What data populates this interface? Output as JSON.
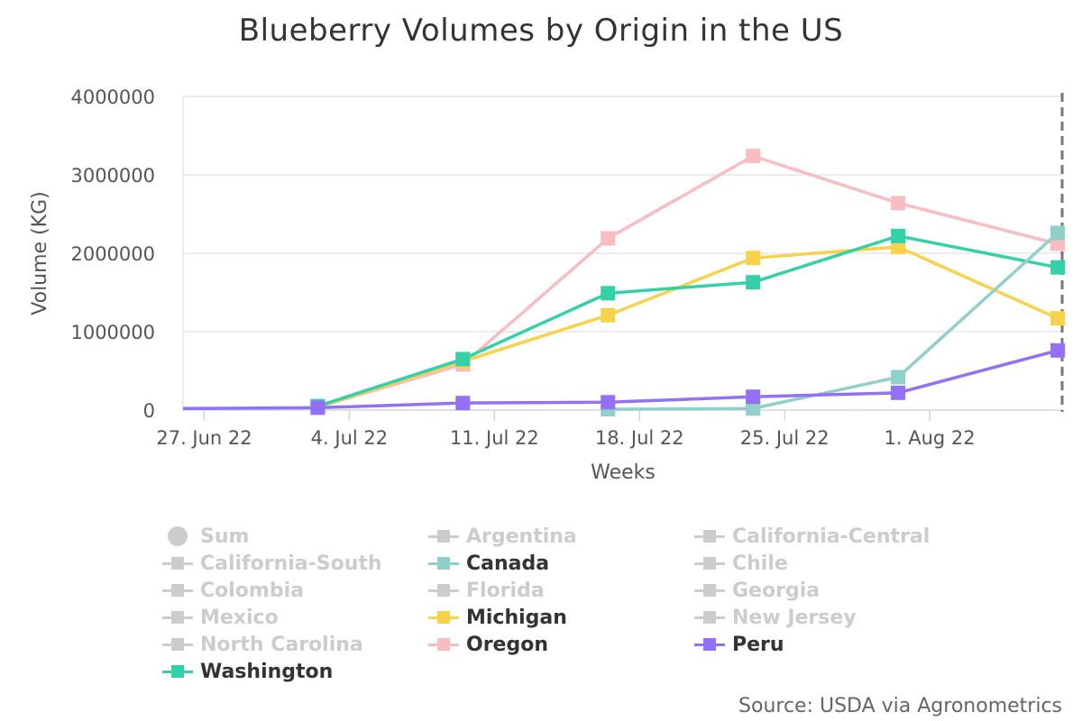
{
  "chart_data": {
    "type": "line",
    "title": "Blueberry Volumes by Origin in the US",
    "xlabel": "Weeks",
    "ylabel": "Volume (KG)",
    "ylim": [
      0,
      4000000
    ],
    "y_ticks": [
      "0",
      "1000000",
      "2000000",
      "3000000",
      "4000000"
    ],
    "x_tick_labels": [
      "27. Jun 22",
      "4. Jul 22",
      "11. Jul 22",
      "18. Jul 22",
      "25. Jul 22",
      "1. Aug 22"
    ],
    "x_range_days": [
      -0.5,
      42
    ],
    "x_tick_days": [
      0,
      7,
      14,
      21,
      28,
      35
    ],
    "crosshair_day": 42,
    "series": [
      {
        "name": "Oregon",
        "color": "#f9bcc0",
        "x_days": [
          6,
          13,
          20,
          27,
          34,
          41.7
        ],
        "values": [
          40000,
          580000,
          2190000,
          3240000,
          2640000,
          2120000
        ]
      },
      {
        "name": "Michigan",
        "color": "#f8d24b",
        "x_days": [
          6,
          13,
          20,
          27,
          34,
          41.7
        ],
        "values": [
          40000,
          620000,
          1210000,
          1940000,
          2080000,
          1170000
        ]
      },
      {
        "name": "Washington",
        "color": "#34d1a8",
        "x_days": [
          6,
          13,
          20,
          27,
          34,
          41.7
        ],
        "values": [
          50000,
          650000,
          1490000,
          1630000,
          2220000,
          1820000
        ]
      },
      {
        "name": "Canada",
        "color": "#90d0c8",
        "x_days": [
          20,
          27,
          34,
          41.7
        ],
        "values": [
          10000,
          20000,
          420000,
          2260000
        ]
      },
      {
        "name": "Peru",
        "color": "#9370f5",
        "x_days": [
          -0.5,
          6,
          13,
          20,
          27,
          34,
          41.7
        ],
        "values": [
          20000,
          30000,
          90000,
          100000,
          170000,
          220000,
          760000
        ]
      }
    ]
  },
  "legend": {
    "items": [
      {
        "label": "Sum",
        "active": false,
        "symbol": "circle"
      },
      {
        "label": "Argentina",
        "active": false
      },
      {
        "label": "California-Central",
        "active": false
      },
      {
        "label": "California-South",
        "active": false
      },
      {
        "label": "Canada",
        "active": true,
        "color": "#90d0c8"
      },
      {
        "label": "Chile",
        "active": false
      },
      {
        "label": "Colombia",
        "active": false
      },
      {
        "label": "Florida",
        "active": false
      },
      {
        "label": "Georgia",
        "active": false
      },
      {
        "label": "Mexico",
        "active": false
      },
      {
        "label": "Michigan",
        "active": true,
        "color": "#f8d24b"
      },
      {
        "label": "New Jersey",
        "active": false
      },
      {
        "label": "North Carolina",
        "active": false
      },
      {
        "label": "Oregon",
        "active": true,
        "color": "#f9bcc0"
      },
      {
        "label": "Peru",
        "active": true,
        "color": "#9370f5"
      },
      {
        "label": "Washington",
        "active": true,
        "color": "#34d1a8"
      }
    ],
    "inactive_color": "#cccccc"
  },
  "source": "Source: USDA via Agronometrics"
}
